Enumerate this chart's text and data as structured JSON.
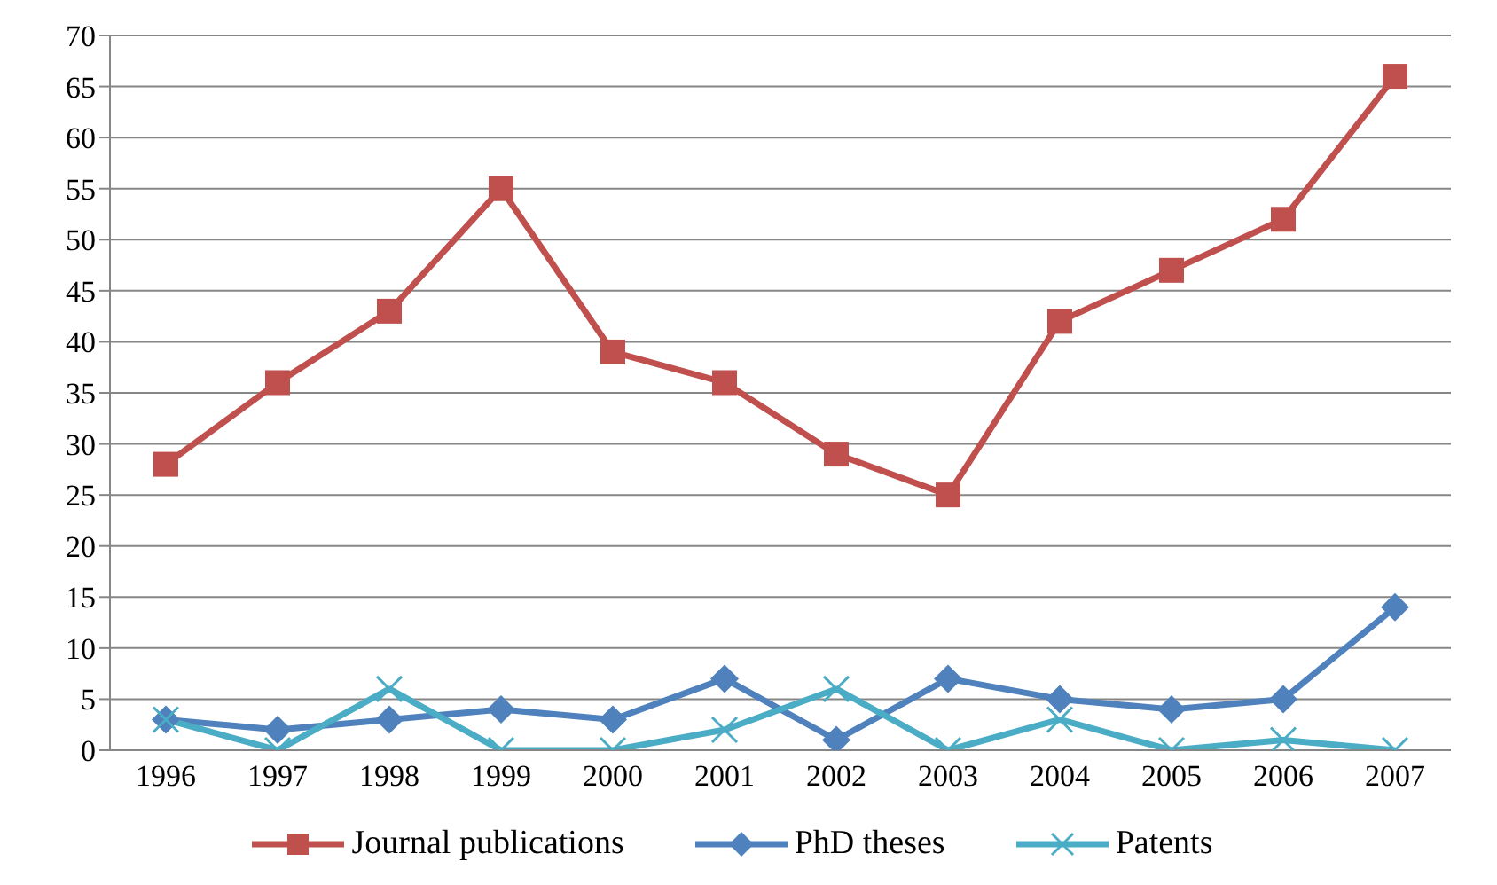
{
  "chart_data": {
    "type": "line",
    "categories": [
      "1996",
      "1997",
      "1998",
      "1999",
      "2000",
      "2001",
      "2002",
      "2003",
      "2004",
      "2005",
      "2006",
      "2007"
    ],
    "series": [
      {
        "name": "Journal publications",
        "color": "#c0504d",
        "marker": "square",
        "values": [
          28,
          36,
          43,
          55,
          39,
          36,
          29,
          25,
          42,
          47,
          52,
          66
        ]
      },
      {
        "name": "PhD theses",
        "color": "#4f81bd",
        "marker": "diamond",
        "values": [
          3,
          2,
          3,
          4,
          3,
          7,
          1,
          7,
          5,
          4,
          5,
          14
        ]
      },
      {
        "name": "Patents",
        "color": "#4bacc6",
        "marker": "cross",
        "values": [
          3,
          0,
          6,
          0,
          0,
          2,
          6,
          0,
          3,
          0,
          1,
          0
        ]
      }
    ],
    "ylim": [
      0,
      70
    ],
    "yticks": [
      0,
      5,
      10,
      15,
      20,
      25,
      30,
      35,
      40,
      45,
      50,
      55,
      60,
      65,
      70
    ],
    "grid": "y",
    "legend": "bottom"
  }
}
